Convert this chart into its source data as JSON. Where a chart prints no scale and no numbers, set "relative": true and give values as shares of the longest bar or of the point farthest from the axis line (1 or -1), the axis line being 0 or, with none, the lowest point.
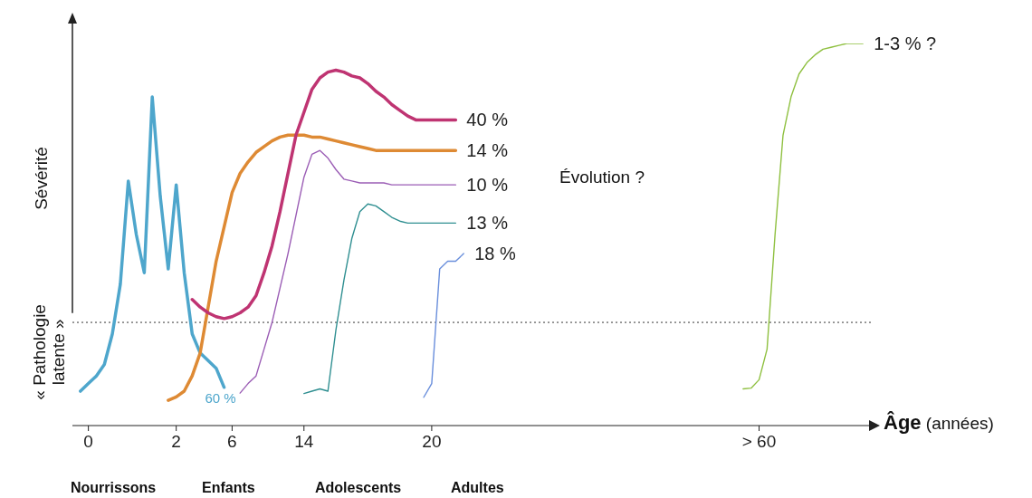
{
  "chart_data": {
    "type": "line",
    "relative": true,
    "ylabel": "Sévérité",
    "xlabel": "Âge (années)",
    "categories": [
      null,
      null,
      "0",
      null,
      null,
      null,
      null,
      null,
      null,
      null,
      null,
      null,
      null,
      "2",
      null,
      null,
      null,
      null,
      null,
      null,
      "6",
      null,
      null,
      null,
      null,
      null,
      null,
      null,
      null,
      "14",
      null,
      null,
      null,
      null,
      null,
      null,
      null,
      null,
      null,
      null,
      null,
      null,
      null,
      null,
      null,
      "20",
      null,
      null,
      null,
      null,
      null,
      null,
      null,
      null,
      null,
      null,
      null,
      null,
      null,
      null,
      null,
      null,
      null,
      null,
      null,
      null,
      null,
      null,
      null,
      null,
      null,
      null,
      null,
      null,
      null,
      null,
      null,
      null,
      null,
      null,
      null,
      null,
      null,
      null,
      null,
      null,
      "> 60",
      null,
      null,
      null,
      null,
      null,
      null,
      null,
      null,
      null,
      null,
      null,
      null,
      null,
      null
    ],
    "marker": "none",
    "line_style": "solid",
    "ref_lines": [
      {
        "axis": "y",
        "value": 0.27,
        "color": "#333333",
        "line_style": "dotted"
      }
    ],
    "annotations": [
      "« Pathologie latente »",
      "Évolution ?",
      "Nourrissons",
      "Enfants",
      "Adolescents",
      "Adultes"
    ],
    "series": [
      {
        "name": "60 %",
        "color": "#4ea6cc",
        "values": [
          null,
          0.09,
          0.11,
          0.13,
          0.16,
          0.24,
          0.37,
          0.64,
          0.5,
          0.4,
          0.86,
          0.6,
          0.41,
          0.63,
          0.4,
          0.24,
          0.19,
          0.17,
          0.15,
          0.1,
          null,
          null,
          null,
          null,
          null,
          null,
          null,
          null,
          null,
          null,
          null,
          null,
          null,
          null,
          null,
          null,
          null,
          null,
          null,
          null,
          null,
          null,
          null,
          null,
          null,
          null,
          null,
          null,
          null,
          null,
          null,
          null,
          null,
          null,
          null,
          null,
          null,
          null,
          null,
          null,
          null,
          null,
          null,
          null,
          null,
          null,
          null,
          null,
          null,
          null,
          null,
          null,
          null,
          null,
          null,
          null,
          null,
          null,
          null,
          null,
          null,
          null,
          null,
          null,
          null,
          null,
          null,
          null,
          null,
          null,
          null,
          null,
          null,
          null,
          null,
          null,
          null,
          null,
          null,
          null,
          null
        ]
      },
      {
        "name": "14 %",
        "color": "#de8a34",
        "values": [
          null,
          null,
          null,
          null,
          null,
          null,
          null,
          null,
          null,
          null,
          null,
          null,
          0.066,
          0.075,
          0.09,
          0.13,
          0.19,
          0.31,
          0.43,
          0.52,
          0.61,
          0.66,
          0.69,
          0.715,
          0.73,
          0.745,
          0.755,
          0.76,
          0.76,
          0.76,
          0.755,
          0.755,
          0.75,
          0.745,
          0.74,
          0.735,
          0.73,
          0.725,
          0.72,
          0.72,
          0.72,
          0.72,
          0.72,
          0.72,
          0.72,
          0.72,
          0.72,
          0.72,
          0.72,
          null,
          null,
          null,
          null,
          null,
          null,
          null,
          null,
          null,
          null,
          null,
          null,
          null,
          null,
          null,
          null,
          null,
          null,
          null,
          null,
          null,
          null,
          null,
          null,
          null,
          null,
          null,
          null,
          null,
          null,
          null,
          null,
          null,
          null,
          null,
          null,
          null,
          null,
          null,
          null,
          null,
          null,
          null,
          null,
          null,
          null,
          null,
          null,
          null,
          null,
          null,
          null
        ]
      },
      {
        "name": "40 %",
        "color": "#bf3472",
        "values": [
          null,
          null,
          null,
          null,
          null,
          null,
          null,
          null,
          null,
          null,
          null,
          null,
          null,
          null,
          null,
          0.33,
          0.31,
          0.295,
          0.285,
          0.28,
          0.285,
          0.295,
          0.31,
          0.34,
          0.4,
          0.47,
          0.56,
          0.66,
          0.76,
          0.82,
          0.88,
          0.91,
          0.925,
          0.93,
          0.925,
          0.915,
          0.91,
          0.895,
          0.875,
          0.86,
          0.84,
          0.825,
          0.81,
          0.8,
          0.8,
          0.8,
          0.8,
          0.8,
          0.8,
          null,
          null,
          null,
          null,
          null,
          null,
          null,
          null,
          null,
          null,
          null,
          null,
          null,
          null,
          null,
          null,
          null,
          null,
          null,
          null,
          null,
          null,
          null,
          null,
          null,
          null,
          null,
          null,
          null,
          null,
          null,
          null,
          null,
          null,
          null,
          null,
          null,
          null,
          null,
          null,
          null,
          null,
          null,
          null,
          null,
          null,
          null,
          null,
          null,
          null,
          null,
          null
        ]
      },
      {
        "name": "10 %",
        "color": "#9b5db5",
        "values": [
          null,
          null,
          null,
          null,
          null,
          null,
          null,
          null,
          null,
          null,
          null,
          null,
          null,
          null,
          null,
          null,
          null,
          null,
          null,
          null,
          null,
          0.085,
          0.11,
          0.13,
          0.2,
          0.27,
          0.36,
          0.45,
          0.55,
          0.65,
          0.71,
          0.72,
          0.7,
          0.67,
          0.645,
          0.64,
          0.635,
          0.635,
          0.635,
          0.635,
          0.63,
          0.63,
          0.63,
          0.63,
          0.63,
          0.63,
          0.63,
          0.63,
          0.63,
          null,
          null,
          null,
          null,
          null,
          null,
          null,
          null,
          null,
          null,
          null,
          null,
          null,
          null,
          null,
          null,
          null,
          null,
          null,
          null,
          null,
          null,
          null,
          null,
          null,
          null,
          null,
          null,
          null,
          null,
          null,
          null,
          null,
          null,
          null,
          null,
          null,
          null,
          null,
          null,
          null,
          null,
          null,
          null,
          null,
          null,
          null,
          null,
          null,
          null,
          null,
          null
        ]
      },
      {
        "name": "13 %",
        "color": "#2f8f91",
        "values": [
          null,
          null,
          null,
          null,
          null,
          null,
          null,
          null,
          null,
          null,
          null,
          null,
          null,
          null,
          null,
          null,
          null,
          null,
          null,
          null,
          null,
          null,
          null,
          null,
          null,
          null,
          null,
          null,
          null,
          0.084,
          0.09,
          0.096,
          0.09,
          0.25,
          0.38,
          0.49,
          0.56,
          0.58,
          0.575,
          0.56,
          0.545,
          0.535,
          0.53,
          0.53,
          0.53,
          0.53,
          0.53,
          0.53,
          0.53,
          null,
          null,
          null,
          null,
          null,
          null,
          null,
          null,
          null,
          null,
          null,
          null,
          null,
          null,
          null,
          null,
          null,
          null,
          null,
          null,
          null,
          null,
          null,
          null,
          null,
          null,
          null,
          null,
          null,
          null,
          null,
          null,
          null,
          null,
          null,
          null,
          null,
          null,
          null,
          null,
          null,
          null,
          null,
          null,
          null,
          null,
          null,
          null,
          null,
          null,
          null,
          null
        ]
      },
      {
        "name": "18 %",
        "color": "#6a8fdc",
        "values": [
          null,
          null,
          null,
          null,
          null,
          null,
          null,
          null,
          null,
          null,
          null,
          null,
          null,
          null,
          null,
          null,
          null,
          null,
          null,
          null,
          null,
          null,
          null,
          null,
          null,
          null,
          null,
          null,
          null,
          null,
          null,
          null,
          null,
          null,
          null,
          null,
          null,
          null,
          null,
          null,
          null,
          null,
          null,
          null,
          0.074,
          0.11,
          0.41,
          0.43,
          0.43,
          0.45,
          null,
          null,
          null,
          null,
          null,
          null,
          null,
          null,
          null,
          null,
          null,
          null,
          null,
          null,
          null,
          null,
          null,
          null,
          null,
          null,
          null,
          null,
          null,
          null,
          null,
          null,
          null,
          null,
          null,
          null,
          null,
          null,
          null,
          null,
          null,
          null,
          null,
          null,
          null,
          null,
          null,
          null,
          null,
          null,
          null,
          null,
          null,
          null,
          null,
          null,
          null
        ]
      },
      {
        "name": "1-3 % ?",
        "color": "#8fc040",
        "values": [
          null,
          null,
          null,
          null,
          null,
          null,
          null,
          null,
          null,
          null,
          null,
          null,
          null,
          null,
          null,
          null,
          null,
          null,
          null,
          null,
          null,
          null,
          null,
          null,
          null,
          null,
          null,
          null,
          null,
          null,
          null,
          null,
          null,
          null,
          null,
          null,
          null,
          null,
          null,
          null,
          null,
          null,
          null,
          null,
          null,
          null,
          null,
          null,
          null,
          null,
          null,
          null,
          null,
          null,
          null,
          null,
          null,
          null,
          null,
          null,
          null,
          null,
          null,
          null,
          null,
          null,
          null,
          null,
          null,
          null,
          null,
          null,
          null,
          null,
          null,
          null,
          null,
          null,
          null,
          null,
          null,
          null,
          null,
          null,
          0.096,
          0.098,
          0.12,
          0.2,
          0.5,
          0.76,
          0.86,
          0.92,
          0.95,
          0.97,
          0.985,
          0.99,
          0.995,
          1,
          1,
          1,
          null
        ]
      }
    ]
  }
}
